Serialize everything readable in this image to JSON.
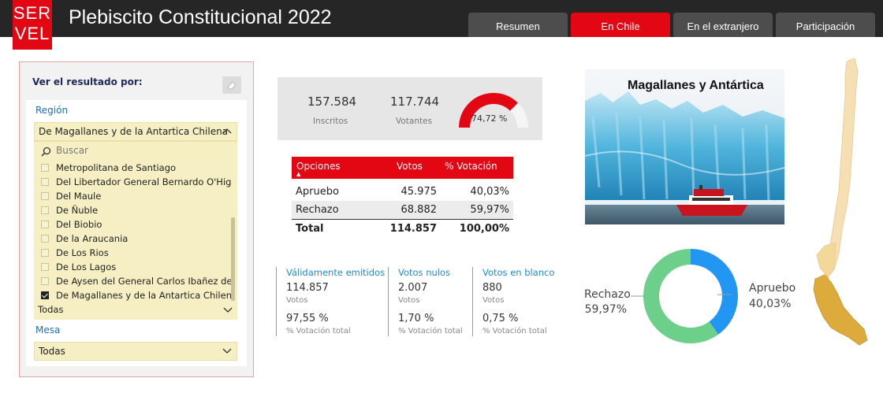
{
  "header": {
    "logo_top": "SER",
    "logo_bottom": "VEL",
    "title": "Plebiscito Constitucional 2022",
    "tabs": [
      "Resumen",
      "En Chile",
      "En el extranjero",
      "Participación"
    ],
    "active_tab": "En Chile"
  },
  "filter": {
    "title": "Ver el resultado por:",
    "region_label": "Región",
    "region_selected": "De Magallanes y de la Antartica Chilena",
    "search_placeholder": "Buscar",
    "regions": [
      {
        "label": "Metropolitana de Santiago",
        "checked": false
      },
      {
        "label": "Del Libertador General Bernardo O'Higgins",
        "checked": false
      },
      {
        "label": "Del Maule",
        "checked": false
      },
      {
        "label": "De Ñuble",
        "checked": false
      },
      {
        "label": "Del Biobio",
        "checked": false
      },
      {
        "label": "De la Araucania",
        "checked": false
      },
      {
        "label": "De Los Rios",
        "checked": false
      },
      {
        "label": "De Los Lagos",
        "checked": false
      },
      {
        "label": "De Aysen del General Carlos Ibañez del C...",
        "checked": false
      },
      {
        "label": "De Magallanes y de la Antartica Chilena",
        "checked": true
      }
    ],
    "comuna_value": "Todas",
    "mesa_label": "Mesa",
    "mesa_value": "Todas"
  },
  "kpis": {
    "inscritos_value": "157.584",
    "inscritos_label": "Inscritos",
    "votantes_value": "117.744",
    "votantes_label": "Votantes",
    "participation_pct": 74.72,
    "participation_label": "74,72 %"
  },
  "results": {
    "headers": [
      "Opciones",
      "Votos",
      "% Votación"
    ],
    "rows": [
      {
        "option": "Apruebo",
        "votes": "45.975",
        "pct": "40,03%"
      },
      {
        "option": "Rechazo",
        "votes": "68.882",
        "pct": "59,97%"
      }
    ],
    "total": {
      "option": "Total",
      "votes": "114.857",
      "pct": "100,00%"
    }
  },
  "stats": [
    {
      "title": "Válidamente emitidos",
      "value": "114.857",
      "value_label": "Votos",
      "pct": "97,55 %",
      "pct_label": "% Votación total"
    },
    {
      "title": "Votos nulos",
      "value": "2.007",
      "value_label": "Votos",
      "pct": "1,70 %",
      "pct_label": "% Votación total"
    },
    {
      "title": "Votos en blanco",
      "value": "880",
      "value_label": "Votos",
      "pct": "0,75 %",
      "pct_label": "% Votación total"
    }
  ],
  "region_image": {
    "title": "Magallanes y Antártica"
  },
  "chart_data": {
    "type": "pie",
    "categories": [
      "Apruebo",
      "Rechazo"
    ],
    "values": [
      40.03,
      59.97
    ],
    "labels": {
      "apruebo_name": "Apruebo",
      "apruebo_pct": "40,03%",
      "rechazo_name": "Rechazo",
      "rechazo_pct": "59,97%"
    },
    "colors": {
      "Apruebo": "#2196f3",
      "Rechazo": "#6ccf8a"
    }
  },
  "colors": {
    "brand": "#e30613",
    "header_bg": "#262626",
    "tab_bg": "#4d4d4d",
    "filter_bg": "#f5efc3",
    "accent_blue": "#1f8ad4"
  }
}
